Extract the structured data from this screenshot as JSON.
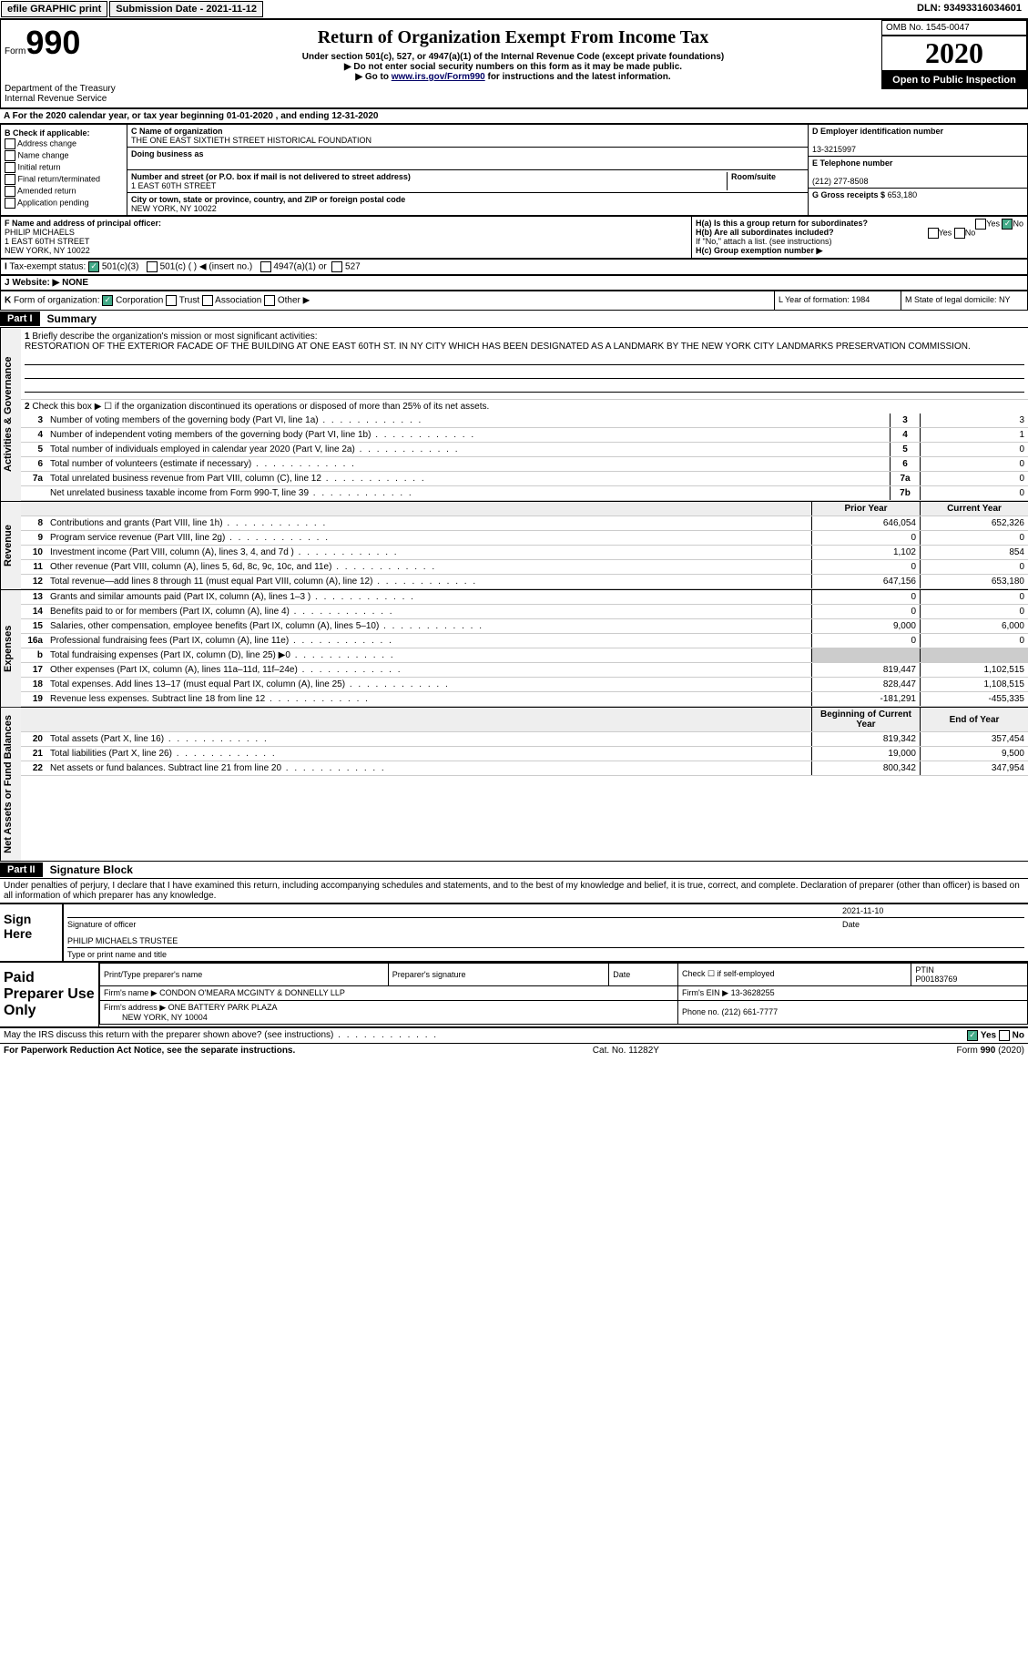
{
  "top_bar": {
    "efile": "efile GRAPHIC print",
    "submission": "Submission Date - 2021-11-12",
    "dln": "DLN: 93493316034601"
  },
  "header": {
    "form": "Form",
    "form_num": "990",
    "dept": "Department of the Treasury\nInternal Revenue Service",
    "title": "Return of Organization Exempt From Income Tax",
    "sub1": "Under section 501(c), 527, or 4947(a)(1) of the Internal Revenue Code (except private foundations)",
    "sub2": "▶ Do not enter social security numbers on this form as it may be made public.",
    "sub3_pre": "▶ Go to ",
    "sub3_link": "www.irs.gov/Form990",
    "sub3_post": " for instructions and the latest information.",
    "omb": "OMB No. 1545-0047",
    "year": "2020",
    "open": "Open to Public Inspection"
  },
  "row_a": "A For the 2020 calendar year, or tax year beginning 01-01-2020   , and ending 12-31-2020",
  "section_b": {
    "title": "B Check if applicable:",
    "opts": [
      "Address change",
      "Name change",
      "Initial return",
      "Final return/terminated",
      "Amended return",
      "Application pending"
    ],
    "c_label": "C Name of organization",
    "c_name": "THE ONE EAST SIXTIETH STREET HISTORICAL FOUNDATION",
    "dba_label": "Doing business as",
    "dba": "",
    "addr_label": "Number and street (or P.O. box if mail is not delivered to street address)",
    "addr": "1 EAST 60TH STREET",
    "room_label": "Room/suite",
    "city_label": "City or town, state or province, country, and ZIP or foreign postal code",
    "city": "NEW YORK, NY  10022",
    "d_label": "D Employer identification number",
    "d_val": "13-3215997",
    "e_label": "E Telephone number",
    "e_val": "(212) 277-8508",
    "g_label": "G Gross receipts $",
    "g_val": "653,180"
  },
  "officer": {
    "f_label": "F Name and address of principal officer:",
    "name": "PHILIP MICHAELS",
    "addr1": "1 EAST 60TH STREET",
    "addr2": "NEW YORK, NY  10022",
    "ha": "H(a)  Is this a group return for subordinates?",
    "ha_yes": "Yes",
    "ha_no": "No",
    "hb": "H(b)  Are all subordinates included?",
    "hb_yes": "Yes",
    "hb_no": "No",
    "hb_note": "If \"No,\" attach a list. (see instructions)",
    "hc": "H(c)  Group exemption number ▶"
  },
  "tax_exempt": {
    "i": "I",
    "label": "Tax-exempt status:",
    "opt1": "501(c)(3)",
    "opt2": "501(c) (  )  ◀ (insert no.)",
    "opt3": "4947(a)(1) or",
    "opt4": "527"
  },
  "website": {
    "j": "J",
    "label": "Website: ▶",
    "val": "NONE"
  },
  "k_row": {
    "k": "K",
    "label": "Form of organization:",
    "opts": [
      "Corporation",
      "Trust",
      "Association",
      "Other ▶"
    ],
    "l": "L Year of formation: 1984",
    "m": "M State of legal domicile: NY"
  },
  "part1": {
    "hdr": "Part I",
    "title": "Summary",
    "q1": "Briefly describe the organization's mission or most significant activities:",
    "mission": "RESTORATION OF THE EXTERIOR FACADE OF THE BUILDING AT ONE EAST 60TH ST. IN NY CITY WHICH HAS BEEN DESIGNATED AS A LANDMARK BY THE NEW YORK CITY LANDMARKS PRESERVATION COMMISSION.",
    "q2": "Check this box ▶ ☐  if the organization discontinued its operations or disposed of more than 25% of its net assets.",
    "lines_gov": [
      {
        "n": "3",
        "t": "Number of voting members of the governing body (Part VI, line 1a)",
        "k": "3",
        "v": "3"
      },
      {
        "n": "4",
        "t": "Number of independent voting members of the governing body (Part VI, line 1b)",
        "k": "4",
        "v": "1"
      },
      {
        "n": "5",
        "t": "Total number of individuals employed in calendar year 2020 (Part V, line 2a)",
        "k": "5",
        "v": "0"
      },
      {
        "n": "6",
        "t": "Total number of volunteers (estimate if necessary)",
        "k": "6",
        "v": "0"
      },
      {
        "n": "7a",
        "t": "Total unrelated business revenue from Part VIII, column (C), line 12",
        "k": "7a",
        "v": "0"
      },
      {
        "n": "",
        "t": "Net unrelated business taxable income from Form 990-T, line 39",
        "k": "7b",
        "v": "0"
      }
    ],
    "hdr_prior": "Prior Year",
    "hdr_curr": "Current Year",
    "lines_rev": [
      {
        "n": "8",
        "t": "Contributions and grants (Part VIII, line 1h)",
        "p": "646,054",
        "c": "652,326"
      },
      {
        "n": "9",
        "t": "Program service revenue (Part VIII, line 2g)",
        "p": "0",
        "c": "0"
      },
      {
        "n": "10",
        "t": "Investment income (Part VIII, column (A), lines 3, 4, and 7d )",
        "p": "1,102",
        "c": "854"
      },
      {
        "n": "11",
        "t": "Other revenue (Part VIII, column (A), lines 5, 6d, 8c, 9c, 10c, and 11e)",
        "p": "0",
        "c": "0"
      },
      {
        "n": "12",
        "t": "Total revenue—add lines 8 through 11 (must equal Part VIII, column (A), line 12)",
        "p": "647,156",
        "c": "653,180"
      }
    ],
    "lines_exp": [
      {
        "n": "13",
        "t": "Grants and similar amounts paid (Part IX, column (A), lines 1–3 )",
        "p": "0",
        "c": "0"
      },
      {
        "n": "14",
        "t": "Benefits paid to or for members (Part IX, column (A), line 4)",
        "p": "0",
        "c": "0"
      },
      {
        "n": "15",
        "t": "Salaries, other compensation, employee benefits (Part IX, column (A), lines 5–10)",
        "p": "9,000",
        "c": "6,000"
      },
      {
        "n": "16a",
        "t": "Professional fundraising fees (Part IX, column (A), line 11e)",
        "p": "0",
        "c": "0"
      },
      {
        "n": "b",
        "t": "Total fundraising expenses (Part IX, column (D), line 25) ▶0",
        "p": "",
        "c": "",
        "grey": true
      },
      {
        "n": "17",
        "t": "Other expenses (Part IX, column (A), lines 11a–11d, 11f–24e)",
        "p": "819,447",
        "c": "1,102,515"
      },
      {
        "n": "18",
        "t": "Total expenses. Add lines 13–17 (must equal Part IX, column (A), line 25)",
        "p": "828,447",
        "c": "1,108,515"
      },
      {
        "n": "19",
        "t": "Revenue less expenses. Subtract line 18 from line 12",
        "p": "-181,291",
        "c": "-455,335"
      }
    ],
    "hdr_beg": "Beginning of Current Year",
    "hdr_end": "End of Year",
    "lines_net": [
      {
        "n": "20",
        "t": "Total assets (Part X, line 16)",
        "p": "819,342",
        "c": "357,454"
      },
      {
        "n": "21",
        "t": "Total liabilities (Part X, line 26)",
        "p": "19,000",
        "c": "9,500"
      },
      {
        "n": "22",
        "t": "Net assets or fund balances. Subtract line 21 from line 20",
        "p": "800,342",
        "c": "347,954"
      }
    ],
    "vtab_gov": "Activities & Governance",
    "vtab_rev": "Revenue",
    "vtab_exp": "Expenses",
    "vtab_net": "Net Assets or Fund Balances"
  },
  "part2": {
    "hdr": "Part II",
    "title": "Signature Block",
    "decl": "Under penalties of perjury, I declare that I have examined this return, including accompanying schedules and statements, and to the best of my knowledge and belief, it is true, correct, and complete. Declaration of preparer (other than officer) is based on all information of which preparer has any knowledge.",
    "sign_here": "Sign Here",
    "sig_officer": "Signature of officer",
    "sig_date": "2021-11-10",
    "sig_date_label": "Date",
    "name_title": "PHILIP MICHAELS  TRUSTEE",
    "name_title_label": "Type or print name and title"
  },
  "preparer": {
    "label": "Paid Preparer Use Only",
    "h1": "Print/Type preparer's name",
    "h2": "Preparer's signature",
    "h3": "Date",
    "h4": "Check ☐ if self-employed",
    "h5_label": "PTIN",
    "h5": "P00183769",
    "firm_name_label": "Firm's name    ▶",
    "firm_name": "CONDON O'MEARA MCGINTY & DONNELLY LLP",
    "firm_ein_label": "Firm's EIN ▶",
    "firm_ein": "13-3628255",
    "firm_addr_label": "Firm's address ▶",
    "firm_addr1": "ONE BATTERY PARK PLAZA",
    "firm_addr2": "NEW YORK, NY  10004",
    "phone_label": "Phone no.",
    "phone": "(212) 661-7777"
  },
  "footer": {
    "discuss": "May the IRS discuss this return with the preparer shown above? (see instructions)",
    "yes": "Yes",
    "no": "No",
    "pra": "For Paperwork Reduction Act Notice, see the separate instructions.",
    "cat": "Cat. No. 11282Y",
    "form": "Form 990 (2020)"
  }
}
